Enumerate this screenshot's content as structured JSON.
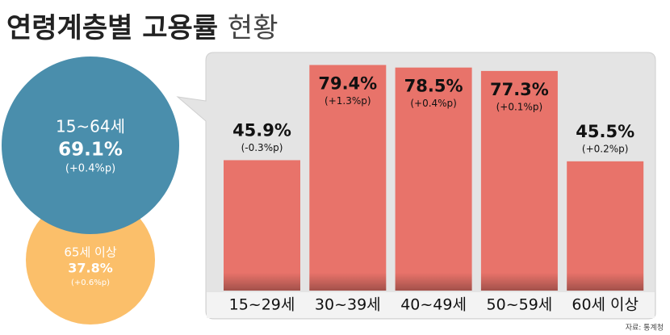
{
  "title": "연령계층별 고용률",
  "title_suffix": "현황",
  "summary": [
    {
      "group": "15~64세",
      "rate": "69.1%",
      "change": "(+0.4%p)"
    },
    {
      "group": "65세 이상",
      "rate": "37.8%",
      "change": "(+0.6%p)"
    }
  ],
  "source": "자료: 통계청",
  "chart_data": {
    "type": "bar",
    "categories": [
      "15~29세",
      "30~39세",
      "40~49세",
      "50~59세",
      "60세 이상"
    ],
    "values": [
      45.9,
      79.4,
      78.5,
      77.3,
      45.5
    ],
    "value_labels": [
      "45.9%",
      "79.4%",
      "78.5%",
      "77.3%",
      "45.5%"
    ],
    "changes": [
      "(-0.3%p)",
      "(+1.3%p)",
      "(+0.4%p)",
      "(+0.1%p)",
      "(+0.2%p)"
    ],
    "color": "#e8736a"
  }
}
